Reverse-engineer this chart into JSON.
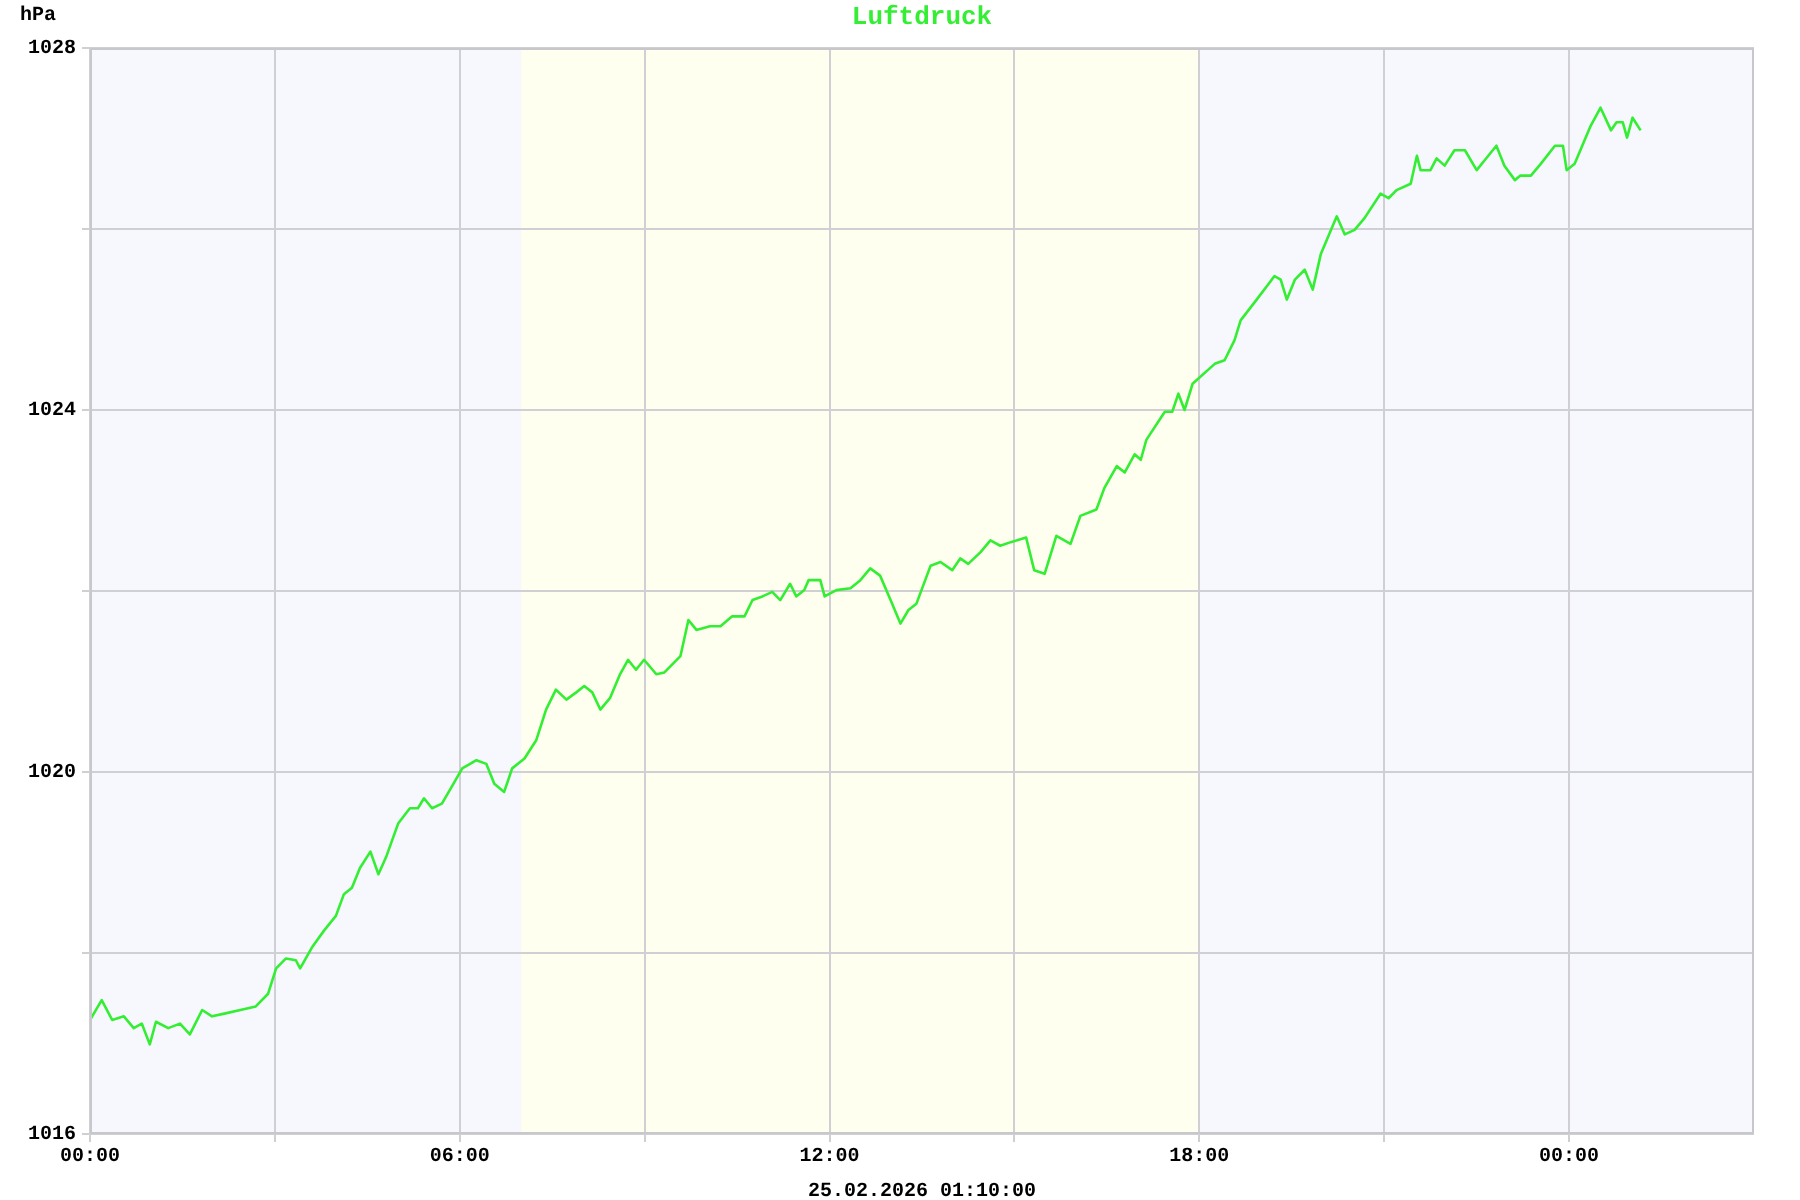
{
  "chart_data": {
    "type": "line",
    "title": "Luftdruck",
    "ylabel": "hPa",
    "annotations": [
      "25.02.2026 01:10:00"
    ],
    "xlim": [
      0,
      27
    ],
    "xticks": [
      {
        "value": 0,
        "label": "00:00"
      },
      {
        "value": 3,
        "label": null
      },
      {
        "value": 6,
        "label": "06:00"
      },
      {
        "value": 9,
        "label": null
      },
      {
        "value": 12,
        "label": "12:00"
      },
      {
        "value": 15,
        "label": null
      },
      {
        "value": 18,
        "label": "18:00"
      },
      {
        "value": 21,
        "label": null
      },
      {
        "value": 24,
        "label": "00:00"
      }
    ],
    "ylim": [
      1016,
      1028
    ],
    "yticks": [
      1016,
      {
        "value": 1018,
        "label": null
      },
      1020,
      {
        "value": 1022,
        "label": null
      },
      1024,
      {
        "value": 1026,
        "label": null
      },
      1028
    ],
    "grid": true,
    "legend": false,
    "marker": "none",
    "line_style": "solid",
    "bands": [
      {
        "axis": "x",
        "from": 7,
        "to": 18,
        "label": null,
        "color": "#fffff0"
      }
    ],
    "series": [
      {
        "color": "#33ee33",
        "x": [
          0,
          0.19,
          0.36,
          0.55,
          0.71,
          0.84,
          0.97,
          1.07,
          1.27,
          1.46,
          1.62,
          1.82,
          1.98,
          2.18,
          2.44,
          2.69,
          2.89,
          3.02,
          3.18,
          3.34,
          3.41,
          3.6,
          3.8,
          3.99,
          4.12,
          4.25,
          4.38,
          4.55,
          4.68,
          4.81,
          5,
          5.19,
          5.32,
          5.42,
          5.55,
          5.71,
          5.88,
          6.04,
          6.27,
          6.43,
          6.56,
          6.72,
          6.85,
          7.05,
          7.24,
          7.4,
          7.56,
          7.73,
          7.89,
          8.02,
          8.15,
          8.28,
          8.44,
          8.6,
          8.73,
          8.86,
          8.99,
          9.19,
          9.32,
          9.58,
          9.71,
          9.84,
          10.06,
          10.23,
          10.42,
          10.62,
          10.75,
          10.91,
          11.07,
          11.2,
          11.36,
          11.46,
          11.59,
          11.66,
          11.85,
          11.92,
          12.11,
          12.34,
          12.5,
          12.66,
          12.82,
          12.99,
          13.15,
          13.28,
          13.41,
          13.64,
          13.8,
          13.99,
          14.12,
          14.25,
          14.45,
          14.61,
          14.77,
          14.94,
          15.19,
          15.32,
          15.49,
          15.68,
          15.91,
          16.07,
          16.33,
          16.46,
          16.66,
          16.79,
          16.95,
          17.05,
          17.14,
          17.44,
          17.56,
          17.66,
          17.76,
          17.89,
          18.25,
          18.41,
          18.57,
          18.67,
          18.93,
          19.22,
          19.32,
          19.42,
          19.55,
          19.71,
          19.84,
          19.97,
          20.23,
          20.36,
          20.52,
          20.68,
          20.94,
          21.07,
          21.2,
          21.43,
          21.53,
          21.59,
          21.75,
          21.85,
          21.98,
          22.14,
          22.31,
          22.5,
          22.63,
          22.82,
          22.95,
          23.12,
          23.21,
          23.38,
          23.54,
          23.77,
          23.9,
          23.96,
          24.09,
          24.35,
          24.51,
          24.68,
          24.77,
          24.87,
          24.94,
          25.03,
          25.16
        ],
        "values": [
          1017.26,
          1017.48,
          1017.26,
          1017.3,
          1017.17,
          1017.22,
          1016.99,
          1017.24,
          1017.17,
          1017.22,
          1017.1,
          1017.37,
          1017.3,
          1017.33,
          1017.37,
          1017.41,
          1017.55,
          1017.83,
          1017.94,
          1017.92,
          1017.83,
          1018.06,
          1018.25,
          1018.41,
          1018.65,
          1018.72,
          1018.94,
          1019.12,
          1018.87,
          1019.07,
          1019.43,
          1019.6,
          1019.6,
          1019.71,
          1019.6,
          1019.65,
          1019.85,
          1020.04,
          1020.13,
          1020.09,
          1019.87,
          1019.78,
          1020.04,
          1020.15,
          1020.35,
          1020.69,
          1020.91,
          1020.8,
          1020.88,
          1020.95,
          1020.88,
          1020.69,
          1020.82,
          1021.08,
          1021.24,
          1021.13,
          1021.24,
          1021.08,
          1021.1,
          1021.28,
          1021.68,
          1021.57,
          1021.61,
          1021.61,
          1021.72,
          1021.72,
          1021.9,
          1021.94,
          1021.99,
          1021.9,
          1022.08,
          1021.94,
          1022.01,
          1022.12,
          1022.12,
          1021.94,
          1022.01,
          1022.03,
          1022.12,
          1022.25,
          1022.17,
          1021.9,
          1021.64,
          1021.79,
          1021.86,
          1022.28,
          1022.32,
          1022.23,
          1022.36,
          1022.3,
          1022.43,
          1022.56,
          1022.5,
          1022.54,
          1022.59,
          1022.23,
          1022.19,
          1022.61,
          1022.52,
          1022.83,
          1022.9,
          1023.14,
          1023.38,
          1023.31,
          1023.51,
          1023.45,
          1023.67,
          1023.98,
          1023.98,
          1024.18,
          1024,
          1024.29,
          1024.51,
          1024.55,
          1024.77,
          1024.99,
          1025.22,
          1025.48,
          1025.44,
          1025.22,
          1025.44,
          1025.55,
          1025.33,
          1025.72,
          1026.14,
          1025.94,
          1025.99,
          1026.12,
          1026.39,
          1026.34,
          1026.43,
          1026.5,
          1026.81,
          1026.65,
          1026.65,
          1026.78,
          1026.7,
          1026.87,
          1026.87,
          1026.65,
          1026.76,
          1026.92,
          1026.7,
          1026.54,
          1026.59,
          1026.59,
          1026.72,
          1026.92,
          1026.92,
          1026.65,
          1026.72,
          1027.14,
          1027.34,
          1027.09,
          1027.18,
          1027.18,
          1027.01,
          1027.23,
          1027.09
        ]
      }
    ]
  }
}
